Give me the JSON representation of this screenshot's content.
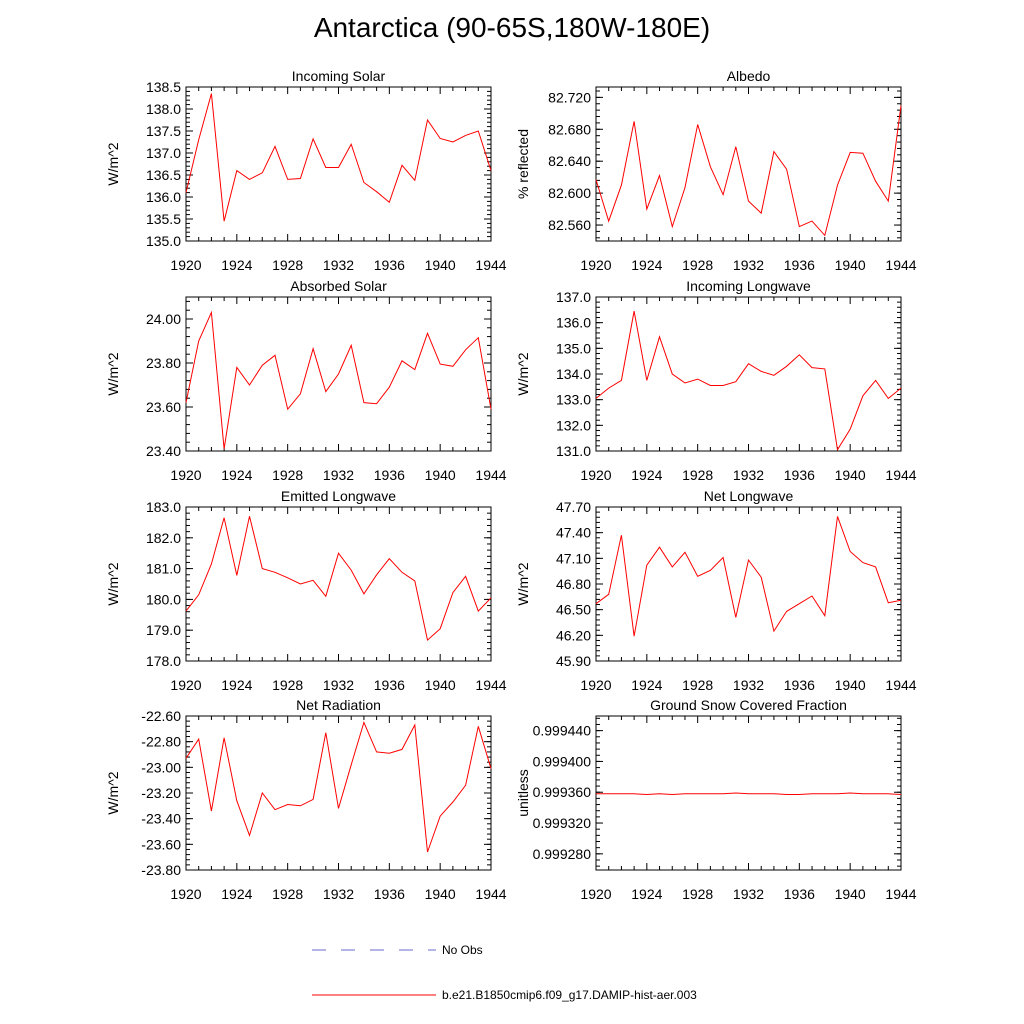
{
  "title": "Antarctica (90-65S,180W-180E)",
  "colors": {
    "model": "#ff0000",
    "obs": "#6a6acd"
  },
  "legend": {
    "obs_label": "No Obs",
    "model_label": "b.e21.B1850cmip6.f09_g17.DAMIP-hist-aer.003"
  },
  "chart_data": [
    {
      "type": "line",
      "title": "Incoming Solar",
      "ylabel": "W/m^2",
      "x": [
        1920,
        1921,
        1922,
        1923,
        1924,
        1925,
        1926,
        1927,
        1928,
        1929,
        1930,
        1931,
        1932,
        1933,
        1934,
        1935,
        1936,
        1937,
        1938,
        1939,
        1940,
        1941,
        1942,
        1943,
        1944
      ],
      "xticks": [
        1920,
        1924,
        1928,
        1932,
        1936,
        1940,
        1944
      ],
      "xlim": [
        1920,
        1944
      ],
      "ylim": [
        135.0,
        138.5
      ],
      "yticks": [
        135.0,
        135.5,
        136.0,
        136.5,
        137.0,
        137.5,
        138.0,
        138.5
      ],
      "ytick_labels": [
        "135.0",
        "135.5",
        "136.0",
        "136.5",
        "137.0",
        "137.5",
        "138.0",
        "138.5"
      ],
      "series": [
        {
          "values": [
            136.1,
            137.3,
            138.35,
            135.45,
            136.6,
            136.4,
            136.55,
            137.15,
            136.4,
            136.42,
            137.32,
            136.67,
            136.67,
            137.2,
            136.33,
            136.12,
            135.88,
            136.72,
            136.38,
            137.75,
            137.33,
            137.25,
            137.4,
            137.5,
            136.6
          ]
        }
      ]
    },
    {
      "type": "line",
      "title": "Albedo",
      "ylabel": "% reflected",
      "x": [
        1920,
        1921,
        1922,
        1923,
        1924,
        1925,
        1926,
        1927,
        1928,
        1929,
        1930,
        1931,
        1932,
        1933,
        1934,
        1935,
        1936,
        1937,
        1938,
        1939,
        1940,
        1941,
        1942,
        1943,
        1944
      ],
      "xticks": [
        1920,
        1924,
        1928,
        1932,
        1936,
        1940,
        1944
      ],
      "xlim": [
        1920,
        1944
      ],
      "ylim": [
        82.54,
        82.733
      ],
      "yticks": [
        82.56,
        82.6,
        82.64,
        82.68,
        82.72
      ],
      "ytick_labels": [
        "82.560",
        "82.600",
        "82.640",
        "82.680",
        "82.720"
      ],
      "series": [
        {
          "values": [
            82.617,
            82.565,
            82.61,
            82.69,
            82.58,
            82.622,
            82.558,
            82.607,
            82.686,
            82.633,
            82.598,
            82.658,
            82.59,
            82.575,
            82.652,
            82.63,
            82.558,
            82.565,
            82.547,
            82.61,
            82.651,
            82.65,
            82.615,
            82.59,
            82.71
          ]
        }
      ]
    },
    {
      "type": "line",
      "title": "Absorbed Solar",
      "ylabel": "W/m^2",
      "x": [
        1920,
        1921,
        1922,
        1923,
        1924,
        1925,
        1926,
        1927,
        1928,
        1929,
        1930,
        1931,
        1932,
        1933,
        1934,
        1935,
        1936,
        1937,
        1938,
        1939,
        1940,
        1941,
        1942,
        1943,
        1944
      ],
      "xticks": [
        1920,
        1924,
        1928,
        1932,
        1936,
        1940,
        1944
      ],
      "xlim": [
        1920,
        1944
      ],
      "ylim": [
        23.4,
        24.1
      ],
      "yticks": [
        23.4,
        23.6,
        23.8,
        24.0
      ],
      "ytick_labels": [
        "23.40",
        "23.60",
        "23.80",
        "24.00"
      ],
      "series": [
        {
          "values": [
            23.62,
            23.9,
            24.03,
            23.41,
            23.78,
            23.7,
            23.79,
            23.835,
            23.59,
            23.66,
            23.865,
            23.67,
            23.75,
            23.88,
            23.62,
            23.615,
            23.69,
            23.81,
            23.77,
            23.935,
            23.795,
            23.785,
            23.86,
            23.915,
            23.59
          ]
        }
      ]
    },
    {
      "type": "line",
      "title": "Incoming Longwave",
      "ylabel": "W/m^2",
      "x": [
        1920,
        1921,
        1922,
        1923,
        1924,
        1925,
        1926,
        1927,
        1928,
        1929,
        1930,
        1931,
        1932,
        1933,
        1934,
        1935,
        1936,
        1937,
        1938,
        1939,
        1940,
        1941,
        1942,
        1943,
        1944
      ],
      "xticks": [
        1920,
        1924,
        1928,
        1932,
        1936,
        1940,
        1944
      ],
      "xlim": [
        1920,
        1944
      ],
      "ylim": [
        131.0,
        137.0
      ],
      "yticks": [
        131.0,
        132.0,
        133.0,
        134.0,
        135.0,
        136.0,
        137.0
      ],
      "ytick_labels": [
        "131.0",
        "132.0",
        "133.0",
        "134.0",
        "135.0",
        "136.0",
        "137.0"
      ],
      "series": [
        {
          "values": [
            133.05,
            133.45,
            133.75,
            136.45,
            133.75,
            135.45,
            134.0,
            133.65,
            133.8,
            133.55,
            133.55,
            133.7,
            134.4,
            134.1,
            133.95,
            134.3,
            134.75,
            134.25,
            134.2,
            131.05,
            131.85,
            133.15,
            133.75,
            133.05,
            133.45
          ]
        }
      ]
    },
    {
      "type": "line",
      "title": "Emitted Longwave",
      "ylabel": "W/m^2",
      "x": [
        1920,
        1921,
        1922,
        1923,
        1924,
        1925,
        1926,
        1927,
        1928,
        1929,
        1930,
        1931,
        1932,
        1933,
        1934,
        1935,
        1936,
        1937,
        1938,
        1939,
        1940,
        1941,
        1942,
        1943,
        1944
      ],
      "xticks": [
        1920,
        1924,
        1928,
        1932,
        1936,
        1940,
        1944
      ],
      "xlim": [
        1920,
        1944
      ],
      "ylim": [
        178.0,
        183.0
      ],
      "yticks": [
        178.0,
        179.0,
        180.0,
        181.0,
        182.0,
        183.0
      ],
      "ytick_labels": [
        "178.0",
        "179.0",
        "180.0",
        "181.0",
        "182.0",
        "183.0"
      ],
      "series": [
        {
          "values": [
            179.62,
            180.15,
            181.15,
            182.65,
            180.78,
            182.7,
            181.0,
            180.88,
            180.7,
            180.5,
            180.62,
            180.1,
            181.5,
            180.95,
            180.18,
            180.8,
            181.32,
            180.88,
            180.6,
            178.68,
            179.05,
            180.22,
            180.75,
            179.62,
            180.05
          ]
        }
      ]
    },
    {
      "type": "line",
      "title": "Net Longwave",
      "ylabel": "W/m^2",
      "x": [
        1920,
        1921,
        1922,
        1923,
        1924,
        1925,
        1926,
        1927,
        1928,
        1929,
        1930,
        1931,
        1932,
        1933,
        1934,
        1935,
        1936,
        1937,
        1938,
        1939,
        1940,
        1941,
        1942,
        1943,
        1944
      ],
      "xticks": [
        1920,
        1924,
        1928,
        1932,
        1936,
        1940,
        1944
      ],
      "xlim": [
        1920,
        1944
      ],
      "ylim": [
        45.9,
        47.7
      ],
      "yticks": [
        45.9,
        46.2,
        46.5,
        46.8,
        47.1,
        47.4,
        47.7
      ],
      "ytick_labels": [
        "45.90",
        "46.20",
        "46.50",
        "46.80",
        "47.10",
        "47.40",
        "47.70"
      ],
      "series": [
        {
          "values": [
            46.57,
            46.68,
            47.37,
            46.19,
            47.02,
            47.23,
            47.0,
            47.17,
            46.89,
            46.96,
            47.11,
            46.41,
            47.08,
            46.88,
            46.25,
            46.48,
            46.57,
            46.66,
            46.43,
            47.59,
            47.18,
            47.05,
            47.0,
            46.58,
            46.61
          ]
        }
      ]
    },
    {
      "type": "line",
      "title": "Net Radiation",
      "ylabel": "W/m^2",
      "x": [
        1920,
        1921,
        1922,
        1923,
        1924,
        1925,
        1926,
        1927,
        1928,
        1929,
        1930,
        1931,
        1932,
        1933,
        1934,
        1935,
        1936,
        1937,
        1938,
        1939,
        1940,
        1941,
        1942,
        1943,
        1944
      ],
      "xticks": [
        1920,
        1924,
        1928,
        1932,
        1936,
        1940,
        1944
      ],
      "xlim": [
        1920,
        1944
      ],
      "ylim": [
        -23.8,
        -22.6
      ],
      "yticks": [
        -23.8,
        -23.6,
        -23.4,
        -23.2,
        -23.0,
        -22.8,
        -22.6
      ],
      "ytick_labels": [
        "-23.80",
        "-23.60",
        "-23.40",
        "-23.20",
        "-23.00",
        "-22.80",
        "-22.60"
      ],
      "series": [
        {
          "values": [
            -22.93,
            -22.78,
            -23.34,
            -22.77,
            -23.26,
            -23.53,
            -23.2,
            -23.33,
            -23.29,
            -23.3,
            -23.25,
            -22.73,
            -23.32,
            -22.98,
            -22.65,
            -22.88,
            -22.89,
            -22.86,
            -22.67,
            -23.66,
            -23.38,
            -23.27,
            -23.14,
            -22.68,
            -23.01
          ]
        }
      ]
    },
    {
      "type": "line",
      "title": "Ground Snow Covered Fraction",
      "ylabel": "unitless",
      "x": [
        1920,
        1921,
        1922,
        1923,
        1924,
        1925,
        1926,
        1927,
        1928,
        1929,
        1930,
        1931,
        1932,
        1933,
        1934,
        1935,
        1936,
        1937,
        1938,
        1939,
        1940,
        1941,
        1942,
        1943,
        1944
      ],
      "xticks": [
        1920,
        1924,
        1928,
        1932,
        1936,
        1940,
        1944
      ],
      "xlim": [
        1920,
        1944
      ],
      "ylim": [
        0.999259,
        0.999459
      ],
      "yticks": [
        0.99928,
        0.99932,
        0.99936,
        0.9994,
        0.99944
      ],
      "ytick_labels": [
        "0.999280",
        "0.999320",
        "0.999360",
        "0.999400",
        "0.999440"
      ],
      "series": [
        {
          "values": [
            0.999358,
            0.999358,
            0.999358,
            0.999358,
            0.999357,
            0.999358,
            0.999357,
            0.999358,
            0.999358,
            0.999358,
            0.999358,
            0.999359,
            0.999358,
            0.999358,
            0.999358,
            0.999357,
            0.999357,
            0.999358,
            0.999358,
            0.999358,
            0.999359,
            0.999358,
            0.999358,
            0.999358,
            0.999357
          ]
        }
      ]
    }
  ]
}
